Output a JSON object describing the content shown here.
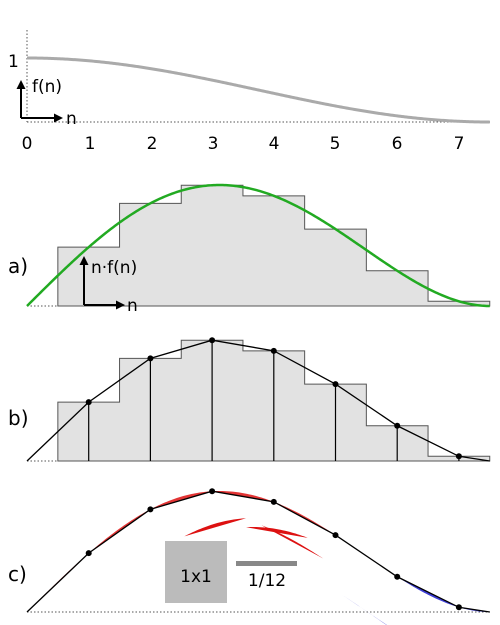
{
  "top_axis": {
    "y_tick": "1",
    "f_label": "f(n)",
    "n_label": "n",
    "x_ticks": [
      "0",
      "1",
      "2",
      "3",
      "4",
      "5",
      "6",
      "7"
    ]
  },
  "panels": [
    {
      "label": "a)",
      "axis_label_y": "n·f(n)",
      "axis_label_x": "n"
    },
    {
      "label": "b)"
    },
    {
      "label": "c)"
    }
  ],
  "legend": {
    "unit_square_label": "1x1",
    "bar_label": "1/12"
  },
  "colors": {
    "f_curve": "#aaaaaa",
    "green_curve": "#22aa22",
    "histogram_fill": "#e2e2e2",
    "histogram_stroke": "#555555",
    "red_lens": "#dd1111",
    "blue_lens": "#1a1acc",
    "unit_square": "#bbbbbb",
    "bar": "#888888"
  }
}
